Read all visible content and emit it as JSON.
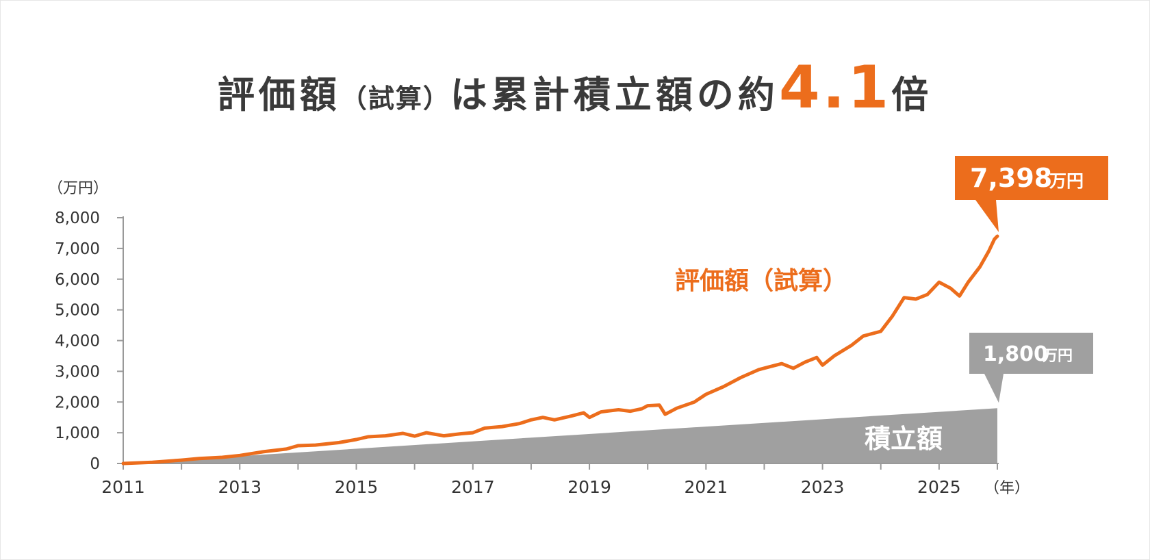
{
  "title": {
    "prefix": "評価額",
    "paren": "（試算）",
    "middle": "は累計積立額の約",
    "multiplier": "4.1",
    "suffix": "倍"
  },
  "chart_data": {
    "type": "line",
    "y_unit": "（万円）",
    "x_unit": "（年）",
    "ylim": [
      0,
      8000
    ],
    "xlim": [
      2011,
      2026
    ],
    "y_ticks": [
      "0",
      "1,000",
      "2,000",
      "3,000",
      "4,000",
      "5,000",
      "6,000",
      "7,000",
      "8,000"
    ],
    "x_ticks": [
      "2011",
      "2013",
      "2015",
      "2017",
      "2019",
      "2021",
      "2023",
      "2025"
    ],
    "series": [
      {
        "name": "評価額（試算）",
        "color": "#ec6d1c",
        "final_value": "7,398",
        "final_unit": "万円",
        "points": [
          [
            2011.0,
            0
          ],
          [
            2011.5,
            40
          ],
          [
            2012.0,
            110
          ],
          [
            2012.3,
            160
          ],
          [
            2012.7,
            200
          ],
          [
            2013.0,
            260
          ],
          [
            2013.4,
            380
          ],
          [
            2013.8,
            470
          ],
          [
            2014.0,
            580
          ],
          [
            2014.3,
            600
          ],
          [
            2014.7,
            680
          ],
          [
            2015.0,
            780
          ],
          [
            2015.2,
            870
          ],
          [
            2015.5,
            900
          ],
          [
            2015.8,
            980
          ],
          [
            2016.0,
            890
          ],
          [
            2016.2,
            1000
          ],
          [
            2016.5,
            900
          ],
          [
            2016.8,
            970
          ],
          [
            2017.0,
            1000
          ],
          [
            2017.2,
            1150
          ],
          [
            2017.5,
            1200
          ],
          [
            2017.8,
            1300
          ],
          [
            2018.0,
            1420
          ],
          [
            2018.2,
            1500
          ],
          [
            2018.4,
            1420
          ],
          [
            2018.7,
            1550
          ],
          [
            2018.9,
            1650
          ],
          [
            2019.0,
            1500
          ],
          [
            2019.2,
            1680
          ],
          [
            2019.5,
            1750
          ],
          [
            2019.7,
            1700
          ],
          [
            2019.9,
            1780
          ],
          [
            2020.0,
            1880
          ],
          [
            2020.2,
            1900
          ],
          [
            2020.3,
            1600
          ],
          [
            2020.5,
            1800
          ],
          [
            2020.8,
            2000
          ],
          [
            2021.0,
            2250
          ],
          [
            2021.3,
            2500
          ],
          [
            2021.6,
            2800
          ],
          [
            2021.9,
            3050
          ],
          [
            2022.1,
            3150
          ],
          [
            2022.3,
            3250
          ],
          [
            2022.5,
            3100
          ],
          [
            2022.7,
            3300
          ],
          [
            2022.9,
            3450
          ],
          [
            2023.0,
            3200
          ],
          [
            2023.2,
            3500
          ],
          [
            2023.5,
            3850
          ],
          [
            2023.7,
            4150
          ],
          [
            2024.0,
            4300
          ],
          [
            2024.2,
            4800
          ],
          [
            2024.4,
            5400
          ],
          [
            2024.6,
            5350
          ],
          [
            2024.8,
            5500
          ],
          [
            2025.0,
            5900
          ],
          [
            2025.2,
            5700
          ],
          [
            2025.35,
            5450
          ],
          [
            2025.5,
            5900
          ],
          [
            2025.7,
            6400
          ],
          [
            2025.85,
            6900
          ],
          [
            2025.95,
            7300
          ],
          [
            2026.0,
            7398
          ]
        ]
      },
      {
        "name": "積立額",
        "type": "area",
        "color": "#a0a0a0",
        "final_value": "1,800",
        "final_unit": "万円",
        "points": [
          [
            2011.0,
            0
          ],
          [
            2026.0,
            1800
          ]
        ]
      }
    ]
  }
}
